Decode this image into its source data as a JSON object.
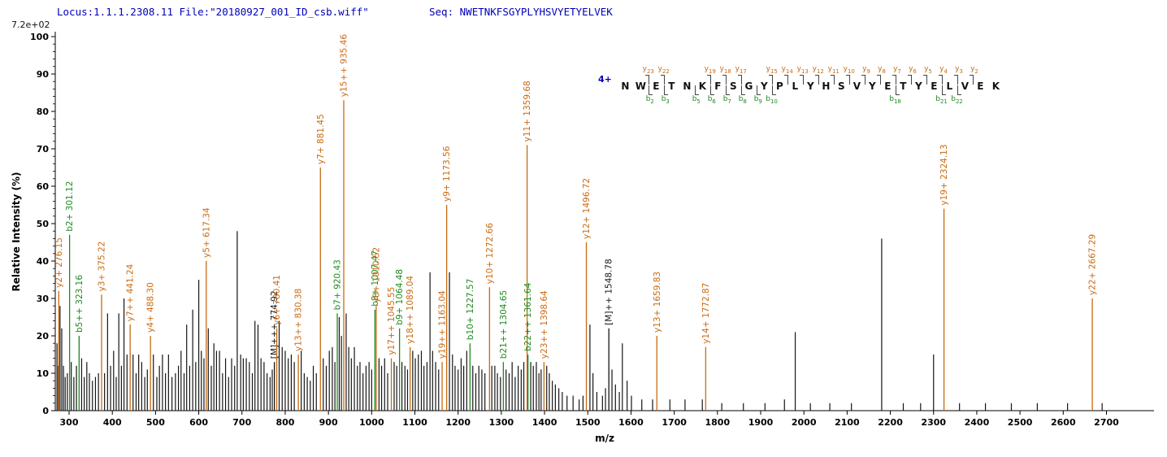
{
  "header": {
    "locus_file": "Locus:1.1.1.2308.11 File:\"20180927_001_ID_csb.wiff\"",
    "seq_label": "Seq:",
    "sequence": "NWETNKFSGYPLYHSVYETYELVEK"
  },
  "max_intensity_label": "7.2e+02",
  "colors": {
    "y_ion": "#c96a11",
    "b_ion": "#1f8b1f",
    "peak": "#151515",
    "header_blue": "#0000bb",
    "axis": "#000000",
    "annotation_letter": "#111111",
    "annotation_mark": "#444444"
  },
  "annotation": {
    "charge_label": "4+",
    "residues": [
      "N",
      "W",
      "E",
      "T",
      "N",
      "K",
      "F",
      "S",
      "G",
      "Y",
      "P",
      "L",
      "Y",
      "H",
      "S",
      "V",
      "Y",
      "E",
      "T",
      "Y",
      "E",
      "L",
      "V",
      "E",
      "K"
    ],
    "y_ions": {
      "2": "y23",
      "3": "y22",
      "6": "y19",
      "7": "y18",
      "8": "y17",
      "10": "y15",
      "11": "y14",
      "12": "y13",
      "13": "y12",
      "14": "y11",
      "15": "y10",
      "16": "y9",
      "17": "y8",
      "18": "y7",
      "19": "y6",
      "20": "y5",
      "21": "y4",
      "22": "y3",
      "23": "y2"
    },
    "b_ions": {
      "2": "b2",
      "3": "b3",
      "5": "b5",
      "6": "b6",
      "7": "b7",
      "8": "b8",
      "9": "b9",
      "10": "b10",
      "18": "b18",
      "21": "b21",
      "22": "b22"
    }
  },
  "chart_data": {
    "type": "bar",
    "subtype": "ms2-fragmentation-spectrum",
    "title": "",
    "xlabel": "m/z",
    "ylabel": "Relative  Intensity (%)",
    "xlim": [
      268,
      2810
    ],
    "ylim": [
      0,
      100
    ],
    "x_ticks": [
      300,
      400,
      500,
      600,
      700,
      800,
      900,
      1000,
      1100,
      1200,
      1300,
      1400,
      1500,
      1600,
      1700,
      1800,
      1900,
      2000,
      2100,
      2200,
      2300,
      2400,
      2500,
      2600,
      2700
    ],
    "y_ticks": [
      0,
      10,
      20,
      30,
      40,
      50,
      60,
      70,
      80,
      90,
      100
    ],
    "base_peak_intensity": "7.2e+02",
    "peaks_labeled": [
      {
        "mz": 276.15,
        "intensity": 32,
        "ion": "y",
        "label": "y2+ 276.15"
      },
      {
        "mz": 301.12,
        "intensity": 47,
        "ion": "b",
        "label": "b2+ 301.12"
      },
      {
        "mz": 323.16,
        "intensity": 20,
        "ion": "b",
        "label": "b5++ 323.16"
      },
      {
        "mz": 375.22,
        "intensity": 31,
        "ion": "y",
        "label": "y3+ 375.22"
      },
      {
        "mz": 441.24,
        "intensity": 23,
        "ion": "y",
        "label": "y7++ 441.24"
      },
      {
        "mz": 488.3,
        "intensity": 20,
        "ion": "y",
        "label": "y4+ 488.30"
      },
      {
        "mz": 617.34,
        "intensity": 40,
        "ion": "y",
        "label": "y5+ 617.34"
      },
      {
        "mz": 774.92,
        "intensity": 13,
        "ion": "M",
        "label": "[M]+++ 774.92"
      },
      {
        "mz": 780.41,
        "intensity": 22,
        "ion": "y",
        "label": "y6+ 780.41"
      },
      {
        "mz": 830.38,
        "intensity": 15,
        "ion": "y",
        "label": "y13++ 830.38"
      },
      {
        "mz": 881.45,
        "intensity": 65,
        "ion": "y",
        "label": "y7+ 881.45"
      },
      {
        "mz": 920.43,
        "intensity": 26,
        "ion": "b",
        "label": "b7+ 920.43"
      },
      {
        "mz": 935.46,
        "intensity": 83,
        "ion": "y",
        "label": "y15++ 935.46"
      },
      {
        "mz": 1007.47,
        "intensity": 27,
        "ion": "b",
        "label": "b8+ 1007.47"
      },
      {
        "mz": 1010.52,
        "intensity": 28,
        "ion": "y",
        "label": "y8+ 1010.52"
      },
      {
        "mz": 1045.55,
        "intensity": 14,
        "ion": "y",
        "label": "y17++ 1045.55"
      },
      {
        "mz": 1064.48,
        "intensity": 22,
        "ion": "b",
        "label": "b9+ 1064.48"
      },
      {
        "mz": 1089.04,
        "intensity": 17,
        "ion": "y",
        "label": "y18++ 1089.04"
      },
      {
        "mz": 1163.04,
        "intensity": 13,
        "ion": "y",
        "label": "y19++ 1163.04"
      },
      {
        "mz": 1173.56,
        "intensity": 55,
        "ion": "y",
        "label": "y9+ 1173.56"
      },
      {
        "mz": 1227.57,
        "intensity": 18,
        "ion": "b",
        "label": "b10+ 1227.57"
      },
      {
        "mz": 1272.66,
        "intensity": 33,
        "ion": "y",
        "label": "y10+ 1272.66"
      },
      {
        "mz": 1304.65,
        "intensity": 13,
        "ion": "b",
        "label": "b21++ 1304.65"
      },
      {
        "mz": 1359.68,
        "intensity": 71,
        "ion": "y",
        "label": "y11+ 1359.68"
      },
      {
        "mz": 1361.64,
        "intensity": 15,
        "ion": "b",
        "label": "b22++ 1361.64"
      },
      {
        "mz": 1398.64,
        "intensity": 13,
        "ion": "y",
        "label": "y23++ 1398.64"
      },
      {
        "mz": 1496.72,
        "intensity": 45,
        "ion": "y",
        "label": "y12+ 1496.72"
      },
      {
        "mz": 1548.78,
        "intensity": 22,
        "ion": "M",
        "label": "[M]++ 1548.78"
      },
      {
        "mz": 1659.83,
        "intensity": 20,
        "ion": "y",
        "label": "y13+ 1659.83"
      },
      {
        "mz": 1772.87,
        "intensity": 17,
        "ion": "y",
        "label": "y14+ 1772.87"
      },
      {
        "mz": 2324.13,
        "intensity": 54,
        "ion": "y",
        "label": "y19+ 2324.13"
      },
      {
        "mz": 2667.29,
        "intensity": 30,
        "ion": "y",
        "label": "y22+ 2667.29"
      }
    ],
    "peaks_unlabeled": [
      [
        272,
        18
      ],
      [
        275,
        12
      ],
      [
        279,
        28
      ],
      [
        283,
        22
      ],
      [
        287,
        12
      ],
      [
        291,
        9
      ],
      [
        296,
        10
      ],
      [
        305,
        13
      ],
      [
        311,
        9
      ],
      [
        317,
        12
      ],
      [
        329,
        14
      ],
      [
        335,
        9
      ],
      [
        341,
        13
      ],
      [
        347,
        10
      ],
      [
        354,
        8
      ],
      [
        361,
        9
      ],
      [
        368,
        10
      ],
      [
        382,
        10
      ],
      [
        389,
        26
      ],
      [
        396,
        12
      ],
      [
        403,
        16
      ],
      [
        409,
        9
      ],
      [
        415,
        26
      ],
      [
        421,
        12
      ],
      [
        427,
        30
      ],
      [
        434,
        15
      ],
      [
        448,
        15
      ],
      [
        455,
        10
      ],
      [
        461,
        15
      ],
      [
        468,
        13
      ],
      [
        475,
        9
      ],
      [
        481,
        11
      ],
      [
        495,
        15
      ],
      [
        503,
        9
      ],
      [
        509,
        12
      ],
      [
        516,
        15
      ],
      [
        523,
        10
      ],
      [
        530,
        15
      ],
      [
        538,
        9
      ],
      [
        546,
        10
      ],
      [
        553,
        12
      ],
      [
        559,
        16
      ],
      [
        566,
        10
      ],
      [
        572,
        23
      ],
      [
        579,
        12
      ],
      [
        586,
        27
      ],
      [
        593,
        13
      ],
      [
        600,
        35
      ],
      [
        606,
        16
      ],
      [
        612,
        14
      ],
      [
        622,
        22
      ],
      [
        629,
        12
      ],
      [
        635,
        18
      ],
      [
        641,
        16
      ],
      [
        648,
        16
      ],
      [
        655,
        10
      ],
      [
        662,
        14
      ],
      [
        669,
        9
      ],
      [
        676,
        14
      ],
      [
        683,
        12
      ],
      [
        689,
        48
      ],
      [
        697,
        15
      ],
      [
        703,
        14
      ],
      [
        710,
        14
      ],
      [
        717,
        13
      ],
      [
        724,
        10
      ],
      [
        730,
        24
      ],
      [
        737,
        23
      ],
      [
        744,
        14
      ],
      [
        751,
        13
      ],
      [
        758,
        10
      ],
      [
        765,
        9
      ],
      [
        770,
        11
      ],
      [
        786,
        24
      ],
      [
        793,
        17
      ],
      [
        800,
        16
      ],
      [
        807,
        14
      ],
      [
        814,
        15
      ],
      [
        821,
        13
      ],
      [
        837,
        16
      ],
      [
        844,
        10
      ],
      [
        851,
        9
      ],
      [
        858,
        8
      ],
      [
        865,
        12
      ],
      [
        872,
        10
      ],
      [
        888,
        14
      ],
      [
        895,
        12
      ],
      [
        902,
        16
      ],
      [
        909,
        17
      ],
      [
        915,
        13
      ],
      [
        925,
        25
      ],
      [
        930,
        20
      ],
      [
        941,
        26
      ],
      [
        947,
        17
      ],
      [
        953,
        14
      ],
      [
        960,
        17
      ],
      [
        967,
        12
      ],
      [
        973,
        13
      ],
      [
        980,
        10
      ],
      [
        987,
        12
      ],
      [
        994,
        13
      ],
      [
        1000,
        11
      ],
      [
        1017,
        14
      ],
      [
        1023,
        12
      ],
      [
        1030,
        14
      ],
      [
        1037,
        10
      ],
      [
        1052,
        13
      ],
      [
        1058,
        12
      ],
      [
        1070,
        13
      ],
      [
        1077,
        12
      ],
      [
        1083,
        11
      ],
      [
        1095,
        16
      ],
      [
        1101,
        14
      ],
      [
        1108,
        15
      ],
      [
        1115,
        16
      ],
      [
        1121,
        12
      ],
      [
        1128,
        13
      ],
      [
        1135,
        37
      ],
      [
        1141,
        16
      ],
      [
        1148,
        13
      ],
      [
        1155,
        11
      ],
      [
        1180,
        37
      ],
      [
        1187,
        15
      ],
      [
        1193,
        12
      ],
      [
        1200,
        11
      ],
      [
        1207,
        14
      ],
      [
        1213,
        12
      ],
      [
        1220,
        16
      ],
      [
        1234,
        12
      ],
      [
        1241,
        10
      ],
      [
        1248,
        12
      ],
      [
        1255,
        11
      ],
      [
        1262,
        10
      ],
      [
        1278,
        12
      ],
      [
        1285,
        12
      ],
      [
        1291,
        10
      ],
      [
        1298,
        9
      ],
      [
        1311,
        11
      ],
      [
        1318,
        10
      ],
      [
        1325,
        13
      ],
      [
        1332,
        9
      ],
      [
        1339,
        12
      ],
      [
        1346,
        11
      ],
      [
        1352,
        13
      ],
      [
        1368,
        13
      ],
      [
        1374,
        12
      ],
      [
        1381,
        13
      ],
      [
        1387,
        10
      ],
      [
        1392,
        11
      ],
      [
        1405,
        12
      ],
      [
        1411,
        10
      ],
      [
        1418,
        8
      ],
      [
        1425,
        7
      ],
      [
        1433,
        6
      ],
      [
        1441,
        5
      ],
      [
        1452,
        4
      ],
      [
        1466,
        4
      ],
      [
        1480,
        3
      ],
      [
        1489,
        4
      ],
      [
        1505,
        23
      ],
      [
        1512,
        10
      ],
      [
        1521,
        5
      ],
      [
        1534,
        4
      ],
      [
        1541,
        6
      ],
      [
        1556,
        11
      ],
      [
        1564,
        7
      ],
      [
        1573,
        5
      ],
      [
        1580,
        18
      ],
      [
        1591,
        8
      ],
      [
        1601,
        4
      ],
      [
        1625,
        3
      ],
      [
        1650,
        3
      ],
      [
        1690,
        3
      ],
      [
        1725,
        3
      ],
      [
        1765,
        3
      ],
      [
        1810,
        2
      ],
      [
        1860,
        2
      ],
      [
        1910,
        2
      ],
      [
        1955,
        3
      ],
      [
        1980,
        21
      ],
      [
        2015,
        2
      ],
      [
        2060,
        2
      ],
      [
        2110,
        2
      ],
      [
        2180,
        46
      ],
      [
        2230,
        2
      ],
      [
        2270,
        2
      ],
      [
        2300,
        15
      ],
      [
        2360,
        2
      ],
      [
        2420,
        2
      ],
      [
        2480,
        2
      ],
      [
        2540,
        2
      ],
      [
        2610,
        2
      ],
      [
        2690,
        2
      ]
    ]
  }
}
